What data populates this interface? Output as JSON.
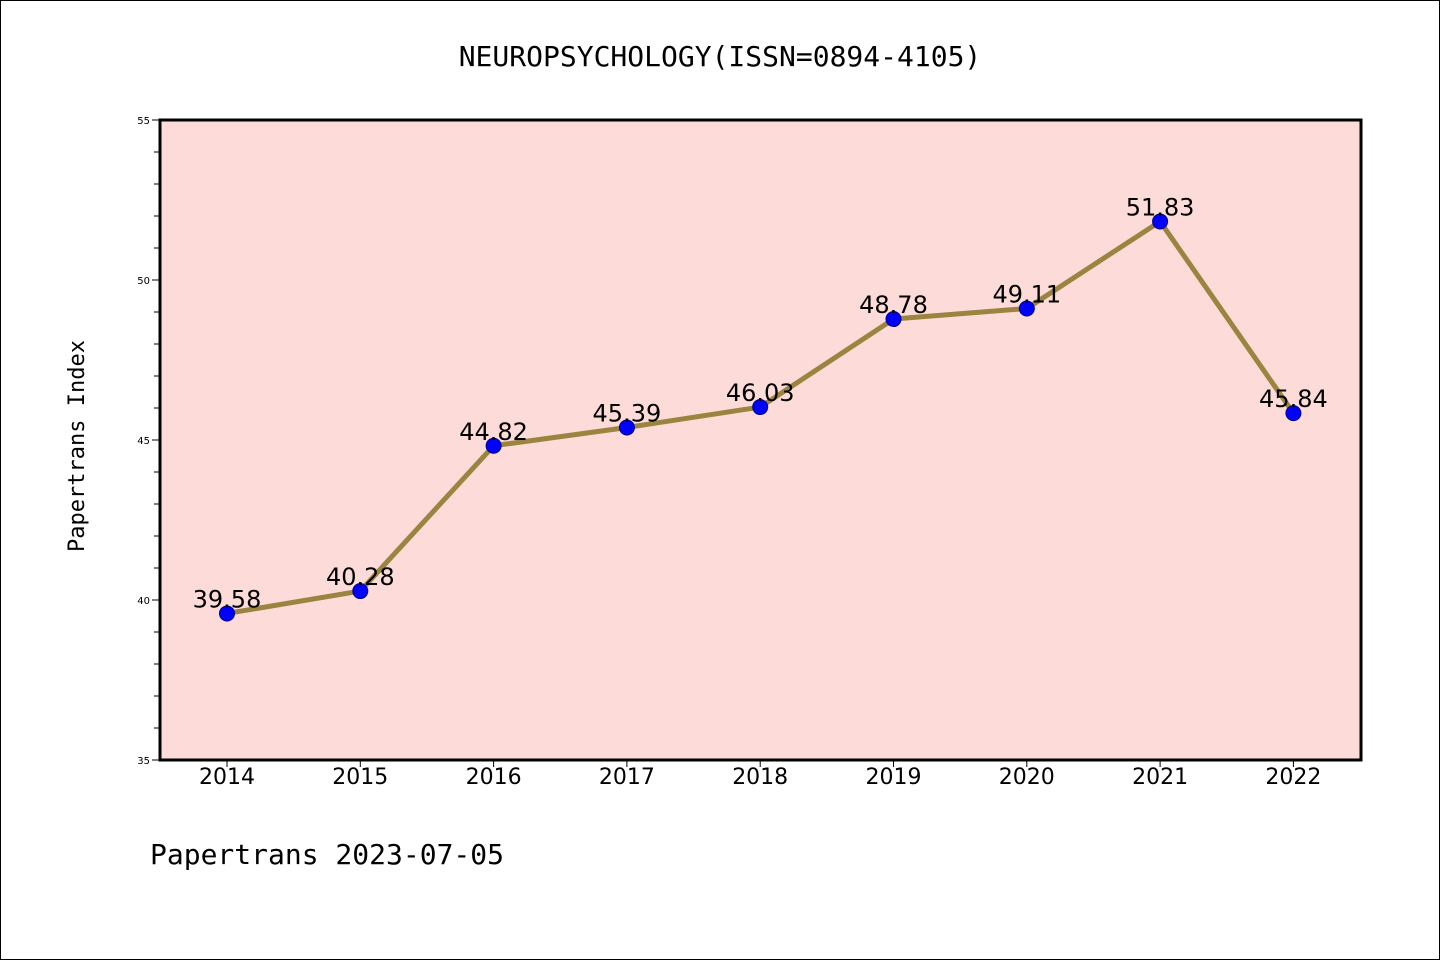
{
  "colors": {
    "plot_background": "#fddbd8",
    "line": "#9a8440",
    "marker_fill": "#0000ff",
    "marker_edge": "#00008b"
  },
  "footer_text": "Papertrans 2023-07-05",
  "chart_data": {
    "type": "line",
    "title": "NEUROPSYCHOLOGY(ISSN=0894-4105)",
    "xlabel": "",
    "ylabel": "Papertrans Index",
    "categories": [
      "2014",
      "2015",
      "2016",
      "2017",
      "2018",
      "2019",
      "2020",
      "2021",
      "2022"
    ],
    "values": [
      39.58,
      40.28,
      44.82,
      45.39,
      46.03,
      48.78,
      49.11,
      51.83,
      45.84
    ],
    "data_labels": [
      "39.58",
      "40.28",
      "44.82",
      "45.39",
      "46.03",
      "48.78",
      "49.11",
      "51.83",
      "45.84"
    ],
    "ylim": [
      35,
      55
    ],
    "yticks": [
      "35",
      "40",
      "45",
      "50",
      "55"
    ],
    "grid": false,
    "legend": "none"
  }
}
